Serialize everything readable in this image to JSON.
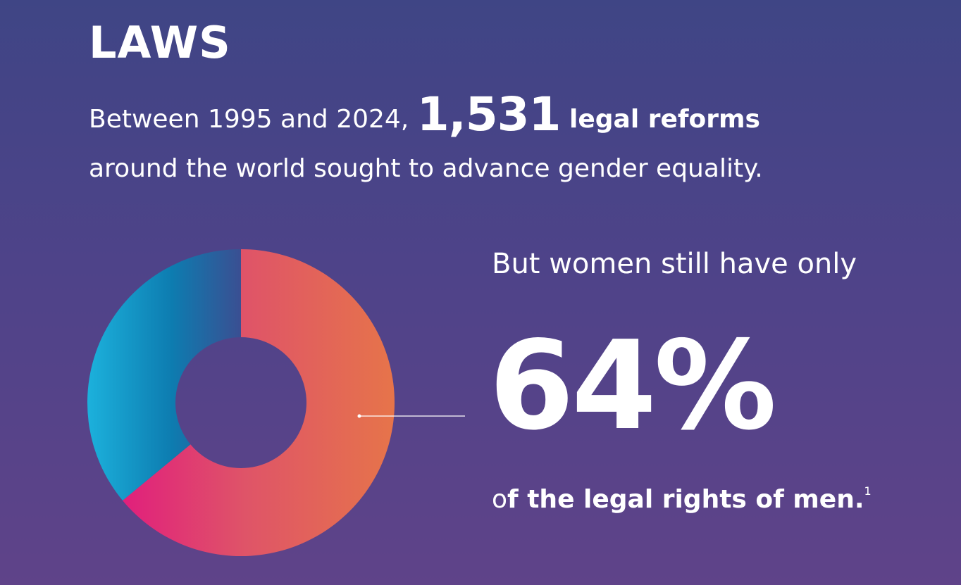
{
  "title": "LAWS",
  "lead": {
    "prefix": "Between 1995 and 2024, ",
    "number": "1,531",
    "bold_suffix": " legal reforms",
    "line2": "around the world sought to advance gender equality."
  },
  "stat": {
    "intro": "But women still have only",
    "value": "64%",
    "o_prefix": "o",
    "f_rest": "f the legal rights of men.",
    "footnote": "1"
  },
  "colors": {
    "women_gradient": [
      "#e01f7c",
      "#df5468",
      "#e6744a"
    ],
    "men_gradient": [
      "#1cb1dc",
      "#0d7cb0",
      "#3a4f92"
    ],
    "background": [
      "#3f4585",
      "#5f4389"
    ]
  },
  "chart_data": {
    "type": "pie",
    "hole": true,
    "categories": [
      "",
      ""
    ],
    "values": [
      64,
      36
    ],
    "title": "",
    "legend": "none"
  }
}
